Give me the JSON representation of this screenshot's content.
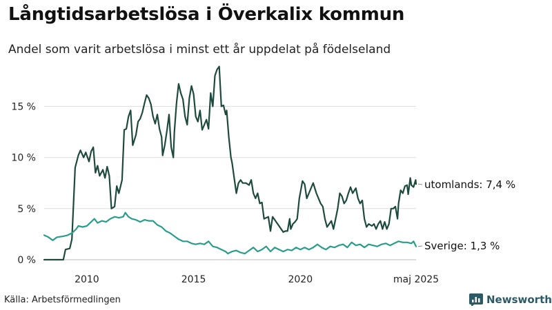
{
  "header": {
    "title": "Långtidsarbetslösa i Överkalix kommun",
    "subtitle": "Andel som varit arbetslösa i minst ett år uppdelat på födelseland"
  },
  "footer": {
    "source": "Källa: Arbetsförmedlingen",
    "brand": "Newsworthy",
    "brand_color": "#2b5a66"
  },
  "chart_data": {
    "type": "line",
    "x_ticks": [
      2010,
      2015,
      2020,
      "maj 2025"
    ],
    "y_ticks": [
      0,
      5,
      10,
      15
    ],
    "y_tick_labels": [
      "0 %",
      "5 %",
      "10 %",
      "15 %"
    ],
    "ylim": [
      0,
      19
    ],
    "xlim": [
      2008.0,
      2025.42
    ],
    "grid": "horizontal",
    "series": [
      {
        "name": "utomlands",
        "end_label": "utomlands: 7,4 %",
        "color": "#1e4a3e",
        "points": [
          [
            2008.0,
            0
          ],
          [
            2008.5,
            0
          ],
          [
            2008.9,
            0
          ],
          [
            2009.0,
            1.0
          ],
          [
            2009.2,
            1.1
          ],
          [
            2009.3,
            2.0
          ],
          [
            2009.45,
            9.0
          ],
          [
            2009.6,
            10.2
          ],
          [
            2009.7,
            10.7
          ],
          [
            2009.85,
            10.0
          ],
          [
            2009.95,
            10.5
          ],
          [
            2010.1,
            9.6
          ],
          [
            2010.2,
            10.6
          ],
          [
            2010.3,
            11.0
          ],
          [
            2010.4,
            8.5
          ],
          [
            2010.5,
            9.2
          ],
          [
            2010.6,
            8.2
          ],
          [
            2010.75,
            8.8
          ],
          [
            2010.85,
            8.0
          ],
          [
            2010.95,
            9.1
          ],
          [
            2011.05,
            8.2
          ],
          [
            2011.15,
            5.0
          ],
          [
            2011.3,
            5.2
          ],
          [
            2011.4,
            7.2
          ],
          [
            2011.5,
            6.5
          ],
          [
            2011.65,
            7.8
          ],
          [
            2011.75,
            12.7
          ],
          [
            2011.85,
            12.8
          ],
          [
            2011.95,
            14.0
          ],
          [
            2012.05,
            14.6
          ],
          [
            2012.15,
            11.2
          ],
          [
            2012.3,
            12.2
          ],
          [
            2012.4,
            13.5
          ],
          [
            2012.5,
            13.8
          ],
          [
            2012.6,
            14.4
          ],
          [
            2012.7,
            15.3
          ],
          [
            2012.8,
            16.1
          ],
          [
            2012.9,
            15.8
          ],
          [
            2013.0,
            15.2
          ],
          [
            2013.1,
            14.0
          ],
          [
            2013.2,
            13.3
          ],
          [
            2013.3,
            14.2
          ],
          [
            2013.4,
            12.8
          ],
          [
            2013.5,
            12.0
          ],
          [
            2013.55,
            10.2
          ],
          [
            2013.65,
            11.2
          ],
          [
            2013.75,
            12.6
          ],
          [
            2013.85,
            14.2
          ],
          [
            2013.95,
            11.0
          ],
          [
            2014.05,
            10.0
          ],
          [
            2014.1,
            12.5
          ],
          [
            2014.2,
            15.3
          ],
          [
            2014.3,
            17.2
          ],
          [
            2014.4,
            16.3
          ],
          [
            2014.5,
            15.7
          ],
          [
            2014.6,
            14.0
          ],
          [
            2014.7,
            13.2
          ],
          [
            2014.8,
            15.8
          ],
          [
            2014.9,
            17.0
          ],
          [
            2015.0,
            16.2
          ],
          [
            2015.1,
            14.0
          ],
          [
            2015.2,
            13.5
          ],
          [
            2015.3,
            14.6
          ],
          [
            2015.4,
            12.7
          ],
          [
            2015.5,
            13.2
          ],
          [
            2015.6,
            13.7
          ],
          [
            2015.7,
            12.8
          ],
          [
            2015.8,
            16.3
          ],
          [
            2015.9,
            15.0
          ],
          [
            2016.0,
            18.0
          ],
          [
            2016.1,
            18.6
          ],
          [
            2016.2,
            18.9
          ],
          [
            2016.3,
            15.0
          ],
          [
            2016.4,
            15.1
          ],
          [
            2016.5,
            14.2
          ],
          [
            2016.55,
            14.6
          ],
          [
            2016.65,
            12.0
          ],
          [
            2016.75,
            10.0
          ],
          [
            2016.8,
            9.5
          ],
          [
            2016.9,
            8.0
          ],
          [
            2017.0,
            6.5
          ],
          [
            2017.1,
            7.5
          ],
          [
            2017.2,
            7.8
          ],
          [
            2017.3,
            7.5
          ],
          [
            2017.45,
            7.5
          ],
          [
            2017.6,
            7.3
          ],
          [
            2017.7,
            7.8
          ],
          [
            2017.8,
            6.5
          ],
          [
            2017.9,
            6.0
          ],
          [
            2018.0,
            6.5
          ],
          [
            2018.1,
            5.5
          ],
          [
            2018.2,
            5.6
          ],
          [
            2018.3,
            4.0
          ],
          [
            2018.4,
            4.1
          ],
          [
            2018.5,
            4.2
          ],
          [
            2018.6,
            2.8
          ],
          [
            2018.7,
            4.2
          ],
          [
            2018.8,
            3.9
          ],
          [
            2018.9,
            3.6
          ],
          [
            2019.0,
            3.3
          ],
          [
            2019.1,
            3.0
          ],
          [
            2019.2,
            2.7
          ],
          [
            2019.3,
            2.8
          ],
          [
            2019.4,
            2.8
          ],
          [
            2019.5,
            4.0
          ],
          [
            2019.55,
            3.0
          ],
          [
            2019.65,
            3.5
          ],
          [
            2019.75,
            3.7
          ],
          [
            2019.85,
            4.0
          ],
          [
            2019.95,
            6.0
          ],
          [
            2020.1,
            7.7
          ],
          [
            2020.2,
            7.4
          ],
          [
            2020.3,
            6.0
          ],
          [
            2020.4,
            6.5
          ],
          [
            2020.5,
            7.0
          ],
          [
            2020.6,
            7.5
          ],
          [
            2020.75,
            6.5
          ],
          [
            2020.85,
            6.0
          ],
          [
            2020.95,
            5.5
          ],
          [
            2021.05,
            5.2
          ],
          [
            2021.15,
            4.0
          ],
          [
            2021.25,
            3.2
          ],
          [
            2021.35,
            3.5
          ],
          [
            2021.45,
            3.8
          ],
          [
            2021.55,
            3.0
          ],
          [
            2021.65,
            4.0
          ],
          [
            2021.75,
            5.0
          ],
          [
            2021.85,
            6.5
          ],
          [
            2021.95,
            6.2
          ],
          [
            2022.05,
            5.5
          ],
          [
            2022.15,
            5.8
          ],
          [
            2022.25,
            6.5
          ],
          [
            2022.35,
            7.1
          ],
          [
            2022.45,
            6.5
          ],
          [
            2022.6,
            7.0
          ],
          [
            2022.7,
            6.0
          ],
          [
            2022.8,
            5.5
          ],
          [
            2022.9,
            5.8
          ],
          [
            2023.0,
            4.0
          ],
          [
            2023.1,
            3.2
          ],
          [
            2023.2,
            3.5
          ],
          [
            2023.35,
            3.3
          ],
          [
            2023.45,
            3.5
          ],
          [
            2023.55,
            3.0
          ],
          [
            2023.65,
            3.5
          ],
          [
            2023.75,
            3.8
          ],
          [
            2023.85,
            3.0
          ],
          [
            2023.95,
            3.7
          ],
          [
            2024.05,
            3.0
          ],
          [
            2024.15,
            3.5
          ],
          [
            2024.25,
            5.0
          ],
          [
            2024.35,
            5.0
          ],
          [
            2024.45,
            5.2
          ],
          [
            2024.55,
            4.0
          ],
          [
            2024.6,
            5.5
          ],
          [
            2024.7,
            6.8
          ],
          [
            2024.8,
            6.5
          ],
          [
            2024.9,
            7.2
          ],
          [
            2025.0,
            7.3
          ],
          [
            2025.05,
            6.4
          ],
          [
            2025.15,
            8.0
          ],
          [
            2025.2,
            7.3
          ],
          [
            2025.3,
            7.1
          ],
          [
            2025.4,
            7.8
          ],
          [
            2025.42,
            7.4
          ]
        ]
      },
      {
        "name": "Sverige",
        "end_label": "Sverige: 1,3 %",
        "color": "#2a9d8a",
        "points": [
          [
            2008.0,
            2.4
          ],
          [
            2008.2,
            2.2
          ],
          [
            2008.4,
            1.9
          ],
          [
            2008.6,
            2.2
          ],
          [
            2008.9,
            2.3
          ],
          [
            2009.1,
            2.4
          ],
          [
            2009.3,
            2.6
          ],
          [
            2009.5,
            3.0
          ],
          [
            2009.6,
            3.3
          ],
          [
            2009.8,
            3.2
          ],
          [
            2010.0,
            3.3
          ],
          [
            2010.2,
            3.7
          ],
          [
            2010.35,
            4.0
          ],
          [
            2010.5,
            3.6
          ],
          [
            2010.7,
            3.8
          ],
          [
            2010.9,
            3.7
          ],
          [
            2011.1,
            4.0
          ],
          [
            2011.3,
            4.2
          ],
          [
            2011.5,
            4.1
          ],
          [
            2011.7,
            4.2
          ],
          [
            2011.8,
            4.6
          ],
          [
            2011.95,
            4.2
          ],
          [
            2012.1,
            4.0
          ],
          [
            2012.3,
            3.9
          ],
          [
            2012.5,
            3.7
          ],
          [
            2012.7,
            3.9
          ],
          [
            2012.9,
            3.8
          ],
          [
            2013.1,
            3.8
          ],
          [
            2013.3,
            3.4
          ],
          [
            2013.5,
            3.2
          ],
          [
            2013.7,
            2.8
          ],
          [
            2013.9,
            2.6
          ],
          [
            2014.1,
            2.3
          ],
          [
            2014.3,
            2.0
          ],
          [
            2014.5,
            1.8
          ],
          [
            2014.7,
            1.8
          ],
          [
            2014.9,
            1.6
          ],
          [
            2015.1,
            1.5
          ],
          [
            2015.3,
            1.6
          ],
          [
            2015.5,
            1.5
          ],
          [
            2015.7,
            1.8
          ],
          [
            2015.9,
            1.3
          ],
          [
            2016.1,
            1.2
          ],
          [
            2016.3,
            1.0
          ],
          [
            2016.5,
            0.8
          ],
          [
            2016.6,
            0.6
          ],
          [
            2016.8,
            0.8
          ],
          [
            2017.0,
            0.9
          ],
          [
            2017.2,
            0.7
          ],
          [
            2017.4,
            0.6
          ],
          [
            2017.6,
            0.9
          ],
          [
            2017.8,
            1.2
          ],
          [
            2018.0,
            0.8
          ],
          [
            2018.2,
            1.0
          ],
          [
            2018.4,
            1.3
          ],
          [
            2018.6,
            0.8
          ],
          [
            2018.8,
            1.2
          ],
          [
            2019.0,
            1.0
          ],
          [
            2019.2,
            0.8
          ],
          [
            2019.4,
            1.0
          ],
          [
            2019.6,
            0.9
          ],
          [
            2019.8,
            1.2
          ],
          [
            2020.0,
            1.0
          ],
          [
            2020.2,
            1.2
          ],
          [
            2020.4,
            1.0
          ],
          [
            2020.6,
            1.2
          ],
          [
            2020.8,
            1.5
          ],
          [
            2021.0,
            1.2
          ],
          [
            2021.2,
            1.0
          ],
          [
            2021.4,
            1.3
          ],
          [
            2021.6,
            1.2
          ],
          [
            2021.8,
            1.4
          ],
          [
            2022.0,
            1.5
          ],
          [
            2022.2,
            1.2
          ],
          [
            2022.4,
            1.7
          ],
          [
            2022.6,
            1.4
          ],
          [
            2022.8,
            1.5
          ],
          [
            2023.0,
            1.2
          ],
          [
            2023.2,
            1.5
          ],
          [
            2023.4,
            1.4
          ],
          [
            2023.6,
            1.3
          ],
          [
            2023.8,
            1.5
          ],
          [
            2024.0,
            1.6
          ],
          [
            2024.2,
            1.4
          ],
          [
            2024.4,
            1.6
          ],
          [
            2024.6,
            1.8
          ],
          [
            2024.8,
            1.7
          ],
          [
            2025.0,
            1.7
          ],
          [
            2025.2,
            1.6
          ],
          [
            2025.3,
            1.8
          ],
          [
            2025.42,
            1.3
          ]
        ]
      }
    ]
  }
}
